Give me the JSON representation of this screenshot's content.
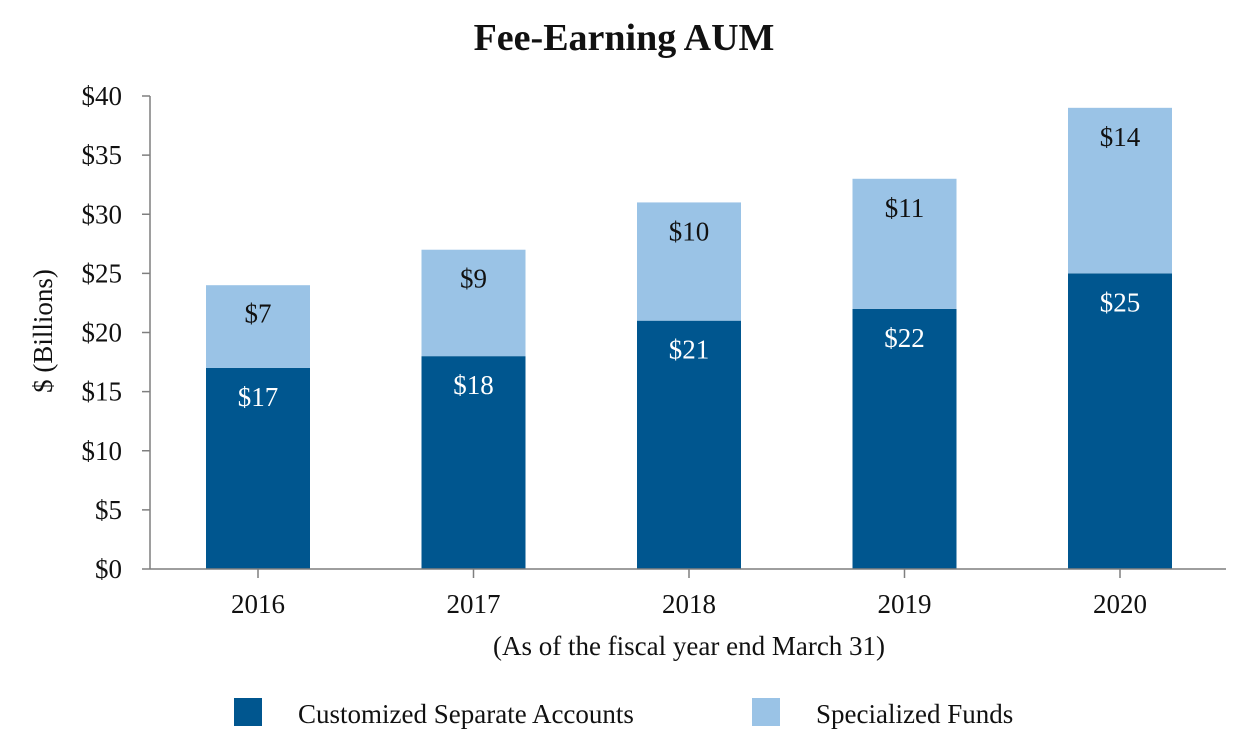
{
  "chart_data": {
    "type": "bar",
    "stacked": true,
    "title": "Fee-Earning AUM",
    "xlabel": "(As of the fiscal year end March 31)",
    "ylabel": "$ (Billions)",
    "categories": [
      "2016",
      "2017",
      "2018",
      "2019",
      "2020"
    ],
    "series": [
      {
        "name": "Customized Separate Accounts",
        "values": [
          17,
          18,
          21,
          22,
          25
        ],
        "labels": [
          "$17",
          "$18",
          "$21",
          "$22",
          "$25"
        ],
        "color": "#00568f",
        "label_color": "#ffffff"
      },
      {
        "name": "Specialized Funds",
        "values": [
          7,
          9,
          10,
          11,
          14
        ],
        "labels": [
          "$7",
          "$9",
          "$10",
          "$11",
          "$14"
        ],
        "color": "#9ac3e6",
        "label_color": "#111111"
      }
    ],
    "ylim": [
      0,
      40
    ],
    "yticks": [
      0,
      5,
      10,
      15,
      20,
      25,
      30,
      35,
      40
    ],
    "ytick_labels": [
      "$0",
      "$5",
      "$10",
      "$15",
      "$20",
      "$25",
      "$30",
      "$35",
      "$40"
    ],
    "grid": false,
    "legend_position": "bottom-center"
  },
  "colors": {
    "axis": "#7f7f7f",
    "text": "#111111"
  }
}
